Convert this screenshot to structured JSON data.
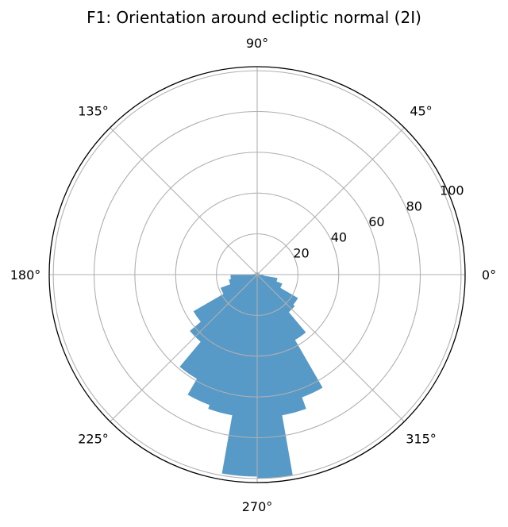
{
  "chart_data": {
    "type": "polar-bar",
    "title": "F1: Orientation around ecliptic normal (2I)",
    "angular_ticks": [
      "0°",
      "45°",
      "90°",
      "135°",
      "180°",
      "225°",
      "270°",
      "315°"
    ],
    "radial_ticks": [
      20,
      40,
      60,
      80,
      100
    ],
    "rlim": [
      0,
      102
    ],
    "bin_width_deg": 10,
    "grid": true,
    "bar_color": "#5799c7",
    "bars": [
      {
        "theta": 5,
        "r": 1
      },
      {
        "theta": 15,
        "r": 1
      },
      {
        "theta": 25,
        "r": 1
      },
      {
        "theta": 35,
        "r": 1
      },
      {
        "theta": 45,
        "r": 1
      },
      {
        "theta": 55,
        "r": 1
      },
      {
        "theta": 65,
        "r": 1
      },
      {
        "theta": 75,
        "r": 1
      },
      {
        "theta": 85,
        "r": 1
      },
      {
        "theta": 95,
        "r": 1
      },
      {
        "theta": 105,
        "r": 1
      },
      {
        "theta": 115,
        "r": 1
      },
      {
        "theta": 125,
        "r": 1
      },
      {
        "theta": 135,
        "r": 1
      },
      {
        "theta": 145,
        "r": 1
      },
      {
        "theta": 155,
        "r": 1
      },
      {
        "theta": 165,
        "r": 1
      },
      {
        "theta": 175,
        "r": 2
      },
      {
        "theta": 185,
        "r": 13
      },
      {
        "theta": 195,
        "r": 14
      },
      {
        "theta": 205,
        "r": 19
      },
      {
        "theta": 215,
        "r": 36
      },
      {
        "theta": 225,
        "r": 43
      },
      {
        "theta": 235,
        "r": 59
      },
      {
        "theta": 245,
        "r": 68
      },
      {
        "theta": 255,
        "r": 70
      },
      {
        "theta": 265,
        "r": 99
      },
      {
        "theta": 275,
        "r": 100
      },
      {
        "theta": 285,
        "r": 70
      },
      {
        "theta": 295,
        "r": 64
      },
      {
        "theta": 305,
        "r": 37
      },
      {
        "theta": 315,
        "r": 24
      },
      {
        "theta": 325,
        "r": 23
      },
      {
        "theta": 335,
        "r": 13
      },
      {
        "theta": 345,
        "r": 10
      },
      {
        "theta": 355,
        "r": 3
      }
    ]
  }
}
